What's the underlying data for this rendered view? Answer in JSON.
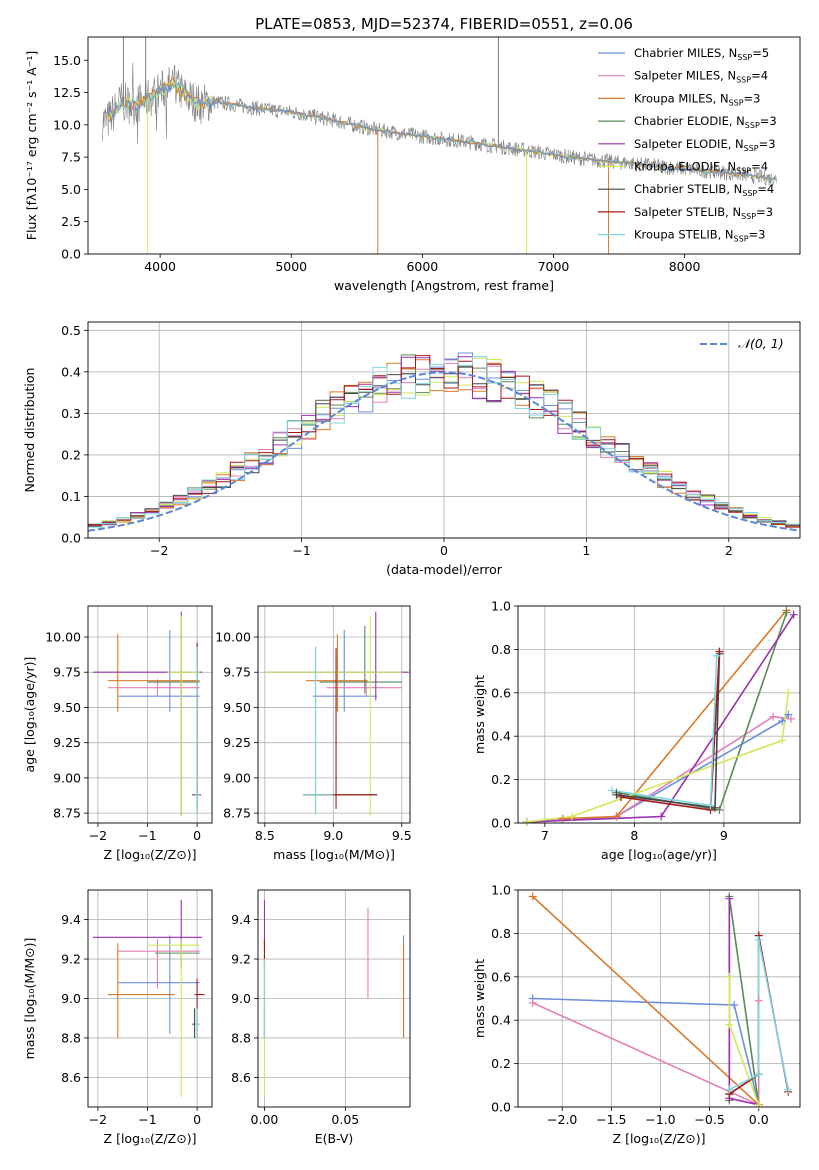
{
  "colors": {
    "Chabrier MILES": "#6b8fdb",
    "Salpeter MILES": "#e37fb8",
    "Kroupa MILES": "#d97a2b",
    "Chabrier ELODIE": "#5a8a5a",
    "Salpeter ELODIE": "#9a30b0",
    "Kroupa ELODIE": "#d2e85a",
    "Chabrier STELIB": "#444444",
    "Salpeter STELIB": "#a81818",
    "Kroupa STELIB": "#7fd6e2",
    "observed": "#808080"
  },
  "chart_data": [
    {
      "id": "spectrum",
      "type": "line",
      "title": "PLATE=0853, MJD=52374, FIBERID=0551, z=0.06",
      "xlabel": "wavelength [Angstrom, rest frame]",
      "ylabel": "Flux [fλ10⁻¹⁷ erg cm⁻² s⁻¹ A⁻¹]",
      "xlim": [
        3450,
        8880
      ],
      "ylim": [
        0,
        16.8
      ],
      "xticks": [
        "4000",
        "5000",
        "6000",
        "7000",
        "8000"
      ],
      "yticks": [
        "0.0",
        "2.5",
        "5.0",
        "7.5",
        "10.0",
        "12.5",
        "15.0"
      ],
      "legend_position": "top-right",
      "legend": [
        {
          "series": "Chabrier MILES",
          "base": "Chabrier MILES, N",
          "sub": "SSP",
          "tail": "=5"
        },
        {
          "series": "Salpeter MILES",
          "base": "Salpeter MILES, N",
          "sub": "SSP",
          "tail": "=4"
        },
        {
          "series": "Kroupa MILES",
          "base": "Kroupa MILES, N",
          "sub": "SSP",
          "tail": "=3"
        },
        {
          "series": "Chabrier ELODIE",
          "base": "Chabrier ELODIE, N",
          "sub": "SSP",
          "tail": "=3"
        },
        {
          "series": "Salpeter ELODIE",
          "base": "Salpeter ELODIE, N",
          "sub": "SSP",
          "tail": "=3"
        },
        {
          "series": "Kroupa ELODIE",
          "base": "Kroupa ELODIE, N",
          "sub": "SSP",
          "tail": "=4"
        },
        {
          "series": "Chabrier STELIB",
          "base": "Chabrier STELIB, N",
          "sub": "SSP",
          "tail": "=4"
        },
        {
          "series": "Salpeter STELIB",
          "base": "Salpeter STELIB, N",
          "sub": "SSP",
          "tail": "=3"
        },
        {
          "series": "Kroupa STELIB",
          "base": "Kroupa STELIB, N",
          "sub": "SSP",
          "tail": "=3"
        }
      ],
      "continuum": {
        "x": [
          3600,
          3700,
          3800,
          3900,
          4000,
          4100,
          4200,
          4300,
          4400,
          4600,
          4800,
          5000,
          5300,
          5600,
          6000,
          6400,
          6800,
          7200,
          7600,
          8000,
          8400,
          8700
        ],
        "y": [
          10.3,
          11.8,
          11.5,
          12.0,
          12.6,
          13.2,
          12.2,
          11.6,
          11.8,
          11.5,
          11.2,
          11.0,
          10.4,
          9.7,
          9.1,
          8.6,
          8.0,
          7.4,
          7.0,
          6.6,
          6.2,
          5.8
        ]
      },
      "spikes": [
        {
          "x": 3905,
          "y": 0,
          "series": "Kroupa ELODIE"
        },
        {
          "x": 5660,
          "y": 0,
          "series": "Kroupa MILES"
        },
        {
          "x": 6795,
          "y": 0,
          "series": "Kroupa ELODIE"
        },
        {
          "x": 7420,
          "y": 0,
          "series": "Kroupa MILES"
        },
        {
          "x": 6580,
          "y": 16.8,
          "series": "observed"
        },
        {
          "x": 3720,
          "y": 16.8,
          "series": "observed"
        },
        {
          "x": 3890,
          "y": 16.8,
          "series": "observed"
        }
      ]
    },
    {
      "id": "residuals",
      "type": "step",
      "xlabel": "(data-model)/error",
      "ylabel": "Normed distribution",
      "xlim": [
        -2.5,
        2.5
      ],
      "ylim": [
        0,
        0.52
      ],
      "xticks": [
        "−2",
        "−1",
        "0",
        "1",
        "2"
      ],
      "yticks": [
        "0.0",
        "0.1",
        "0.2",
        "0.3",
        "0.4",
        "0.5"
      ],
      "legend_position": "top-right",
      "reference": {
        "name": "𝒩(0, 1)",
        "style": "dashed",
        "color": "#5b87d6"
      },
      "bin_width": 0.1
    },
    {
      "id": "age-vs-Z",
      "type": "errorbar",
      "xlabel": "Z [log₁₀(Z/Z⊙)]",
      "ylabel": "age  [log₁₀(age/yr)]",
      "xlim": [
        -2.2,
        0.3
      ],
      "ylim": [
        8.68,
        10.22
      ],
      "xticks": [
        "−2",
        "−1",
        "0"
      ],
      "yticks": [
        "8.75",
        "9.00",
        "9.25",
        "9.50",
        "9.75",
        "10.00"
      ],
      "points": [
        {
          "series": "Chabrier MILES",
          "x": -0.55,
          "xe": [
            -1.6,
            0.05
          ],
          "y": 9.58,
          "ye": [
            9.47,
            10.05
          ]
        },
        {
          "series": "Salpeter MILES",
          "x": -0.8,
          "xe": [
            -1.8,
            0.05
          ],
          "y": 9.64,
          "ye": [
            9.58,
            9.7
          ]
        },
        {
          "series": "Kroupa MILES",
          "x": -1.6,
          "xe": [
            -1.8,
            0.05
          ],
          "y": 9.69,
          "ye": [
            9.47,
            10.02
          ]
        },
        {
          "series": "Chabrier ELODIE",
          "x": -0.32,
          "xe": [
            -1.0,
            0.05
          ],
          "y": 9.68,
          "ye": [
            9.6,
            9.77
          ]
        },
        {
          "series": "Salpeter ELODIE",
          "x": -0.32,
          "xe": [
            -2.1,
            0.1
          ],
          "y": 9.75,
          "ye": [
            8.73,
            10.18
          ]
        },
        {
          "series": "Kroupa ELODIE",
          "x": -0.32,
          "xe": [
            -0.6,
            0.05
          ],
          "y": 9.75,
          "ye": [
            8.73,
            10.15
          ]
        },
        {
          "series": "Chabrier STELIB",
          "x": 0.0,
          "xe": [
            -0.1,
            0.05
          ],
          "y": 8.88,
          "ye": [
            8.75,
            9.96
          ]
        },
        {
          "series": "Salpeter STELIB",
          "x": 0.0,
          "xe": [
            -0.05,
            0.08
          ],
          "y": 8.88,
          "ye": [
            8.8,
            9.95
          ]
        },
        {
          "series": "Kroupa STELIB",
          "x": 0.0,
          "xe": [
            -0.05,
            0.05
          ],
          "y": 8.88,
          "ye": [
            8.75,
            9.93
          ]
        }
      ]
    },
    {
      "id": "age-vs-mass",
      "type": "errorbar",
      "xlabel": "mass [log₁₀(M/M⊙)]",
      "ylabel": "",
      "xlim": [
        8.45,
        9.56
      ],
      "ylim": [
        8.68,
        10.22
      ],
      "xticks": [
        "8.5",
        "9.0",
        "9.5"
      ],
      "yticks": [
        "8.75",
        "9.00",
        "9.25",
        "9.50",
        "9.75",
        "10.00"
      ],
      "points": [
        {
          "series": "Chabrier MILES",
          "x": 9.08,
          "xe": [
            8.85,
            9.32
          ],
          "y": 9.58,
          "ye": [
            9.47,
            10.05
          ]
        },
        {
          "series": "Salpeter MILES",
          "x": 9.24,
          "xe": [
            8.95,
            9.5
          ],
          "y": 9.64,
          "ye": [
            9.58,
            9.7
          ]
        },
        {
          "series": "Kroupa MILES",
          "x": 9.03,
          "xe": [
            8.8,
            9.25
          ],
          "y": 9.69,
          "ye": [
            9.47,
            10.02
          ]
        },
        {
          "series": "Chabrier ELODIE",
          "x": 9.23,
          "xe": [
            8.9,
            9.5
          ],
          "y": 9.68,
          "ye": [
            9.6,
            10.08
          ]
        },
        {
          "series": "Salpeter ELODIE",
          "x": 9.31,
          "xe": [
            8.5,
            9.55
          ],
          "y": 9.75,
          "ye": [
            9.55,
            10.18
          ]
        },
        {
          "series": "Kroupa ELODIE",
          "x": 9.27,
          "xe": [
            8.5,
            9.5
          ],
          "y": 9.75,
          "ye": [
            8.73,
            10.15
          ]
        },
        {
          "series": "Chabrier STELIB",
          "x": 8.87,
          "xe": [
            8.78,
            9.32
          ],
          "y": 8.88,
          "ye": [
            8.75,
            9.93
          ]
        },
        {
          "series": "Salpeter STELIB",
          "x": 9.02,
          "xe": [
            8.8,
            9.32
          ],
          "y": 8.88,
          "ye": [
            8.78,
            9.92
          ]
        },
        {
          "series": "Kroupa STELIB",
          "x": 8.87,
          "xe": [
            8.78,
            9.0
          ],
          "y": 8.88,
          "ye": [
            8.75,
            9.93
          ]
        }
      ]
    },
    {
      "id": "weight-vs-age",
      "type": "line",
      "xlabel": "age  [log₁₀(age/yr)]",
      "ylabel": "mass weight",
      "xlim": [
        6.7,
        9.85
      ],
      "ylim": [
        0,
        1.0
      ],
      "xticks": [
        "7",
        "8",
        "9"
      ],
      "yticks": [
        "0.0",
        "0.2",
        "0.4",
        "0.6",
        "0.8",
        "1.0"
      ],
      "series": [
        {
          "name": "Chabrier MILES",
          "x": [
            6.8,
            7.8,
            9.65,
            9.72
          ],
          "y": [
            0.005,
            0.03,
            0.47,
            0.5
          ]
        },
        {
          "name": "Salpeter MILES",
          "x": [
            6.8,
            7.8,
            9.55,
            9.75
          ],
          "y": [
            0.005,
            0.03,
            0.49,
            0.48
          ]
        },
        {
          "name": "Kroupa MILES",
          "x": [
            7.2,
            7.8,
            9.7
          ],
          "y": [
            0.02,
            0.03,
            0.98
          ]
        },
        {
          "name": "Chabrier ELODIE",
          "x": [
            7.8,
            8.95,
            9.7
          ],
          "y": [
            0.14,
            0.06,
            0.97
          ]
        },
        {
          "name": "Salpeter ELODIE",
          "x": [
            6.8,
            8.3,
            9.78
          ],
          "y": [
            0.005,
            0.03,
            0.96
          ]
        },
        {
          "name": "Kroupa ELODIE",
          "x": [
            6.8,
            7.3,
            9.65,
            9.72
          ],
          "y": [
            0.005,
            0.03,
            0.38,
            0.6
          ]
        },
        {
          "name": "Chabrier STELIB",
          "x": [
            7.8,
            8.9,
            8.95
          ],
          "y": [
            0.13,
            0.07,
            0.78
          ]
        },
        {
          "name": "Salpeter STELIB",
          "x": [
            7.85,
            8.85,
            8.95
          ],
          "y": [
            0.12,
            0.06,
            0.79
          ]
        },
        {
          "name": "Kroupa STELIB",
          "x": [
            7.75,
            8.85,
            8.92
          ],
          "y": [
            0.15,
            0.08,
            0.77
          ]
        }
      ]
    },
    {
      "id": "mass-vs-Z",
      "type": "errorbar",
      "xlabel": "Z [log₁₀(Z/Z⊙)]",
      "ylabel": "mass [log₁₀(M/M⊙)]",
      "xlim": [
        -2.2,
        0.3
      ],
      "ylim": [
        8.45,
        9.55
      ],
      "xticks": [
        "−2",
        "−1",
        "0"
      ],
      "yticks": [
        "8.6",
        "8.8",
        "9.0",
        "9.2",
        "9.4"
      ],
      "points": [
        {
          "series": "Chabrier MILES",
          "x": -0.55,
          "xe": [
            -1.6,
            0.05
          ],
          "y": 9.08,
          "ye": [
            8.82,
            9.32
          ]
        },
        {
          "series": "Salpeter MILES",
          "x": -0.8,
          "xe": [
            -1.6,
            0.05
          ],
          "y": 9.24,
          "ye": [
            9.05,
            9.3
          ]
        },
        {
          "series": "Kroupa MILES",
          "x": -1.6,
          "xe": [
            -1.8,
            -0.45
          ],
          "y": 9.02,
          "ye": [
            8.8,
            9.28
          ]
        },
        {
          "series": "Chabrier ELODIE",
          "x": -0.32,
          "xe": [
            -0.85,
            0.05
          ],
          "y": 9.23,
          "ye": [
            9.15,
            9.3
          ]
        },
        {
          "series": "Salpeter ELODIE",
          "x": -0.32,
          "xe": [
            -2.1,
            0.1
          ],
          "y": 9.31,
          "ye": [
            9.25,
            9.5
          ]
        },
        {
          "series": "Kroupa ELODIE",
          "x": -0.32,
          "xe": [
            -1.0,
            0.05
          ],
          "y": 9.27,
          "ye": [
            8.5,
            9.3
          ]
        },
        {
          "series": "Chabrier STELIB",
          "x": -0.05,
          "xe": [
            -0.1,
            0.05
          ],
          "y": 8.87,
          "ye": [
            8.8,
            8.95
          ]
        },
        {
          "series": "Salpeter STELIB",
          "x": 0.0,
          "xe": [
            -0.05,
            0.15
          ],
          "y": 9.02,
          "ye": [
            8.8,
            9.1
          ]
        },
        {
          "series": "Kroupa STELIB",
          "x": 0.0,
          "xe": [
            -0.05,
            0.05
          ],
          "y": 8.87,
          "ye": [
            8.8,
            8.95
          ]
        }
      ]
    },
    {
      "id": "mass-vs-EBV",
      "type": "errorbar",
      "xlabel": "E(B-V)",
      "ylabel": "",
      "xlim": [
        -0.004,
        0.09
      ],
      "ylim": [
        8.45,
        9.55
      ],
      "xticks": [
        "0.00",
        "0.05"
      ],
      "yticks": [
        "8.6",
        "8.8",
        "9.0",
        "9.2",
        "9.4"
      ],
      "points": [
        {
          "series": "Chabrier MILES",
          "x": 0.086,
          "xe": [
            0.086,
            0.086
          ],
          "y": 9.08,
          "ye": [
            8.82,
            9.32
          ]
        },
        {
          "series": "Salpeter MILES",
          "x": 0.064,
          "xe": [
            0.064,
            0.064
          ],
          "y": 9.24,
          "ye": [
            9.0,
            9.46
          ]
        },
        {
          "series": "Kroupa MILES",
          "x": 0.086,
          "xe": [
            0.086,
            0.086
          ],
          "y": 9.02,
          "ye": [
            8.8,
            9.28
          ]
        },
        {
          "series": "Chabrier ELODIE",
          "x": 0.0,
          "xe": [
            0.0,
            0.0
          ],
          "y": 9.23,
          "ye": [
            9.15,
            9.3
          ]
        },
        {
          "series": "Salpeter ELODIE",
          "x": 0.0,
          "xe": [
            0.0,
            0.0
          ],
          "y": 9.31,
          "ye": [
            9.25,
            9.5
          ]
        },
        {
          "series": "Kroupa ELODIE",
          "x": 0.0,
          "xe": [
            0.0,
            0.0
          ],
          "y": 9.27,
          "ye": [
            8.5,
            9.3
          ]
        },
        {
          "series": "Chabrier STELIB",
          "x": 0.0,
          "xe": [
            0.0,
            0.0
          ],
          "y": 8.87,
          "ye": [
            8.8,
            8.95
          ]
        },
        {
          "series": "Salpeter STELIB",
          "x": 0.0,
          "xe": [
            0.0,
            0.0
          ],
          "y": 9.02,
          "ye": [
            8.8,
            9.3
          ]
        },
        {
          "series": "Kroupa STELIB",
          "x": 0.0,
          "xe": [
            0.0,
            0.0
          ],
          "y": 8.87,
          "ye": [
            8.8,
            9.2
          ]
        }
      ]
    },
    {
      "id": "weight-vs-Z",
      "type": "line",
      "xlabel": "Z [log₁₀(Z/Z⊙)]",
      "ylabel": "mass weight",
      "xlim": [
        -2.45,
        0.42
      ],
      "ylim": [
        0,
        1.0
      ],
      "xticks": [
        "−2.0",
        "−1.5",
        "−1.0",
        "−0.5",
        "0.0"
      ],
      "yticks": [
        "0.0",
        "0.2",
        "0.4",
        "0.6",
        "0.8",
        "1.0"
      ],
      "series": [
        {
          "name": "Chabrier MILES",
          "x": [
            -2.3,
            -0.25,
            0.0
          ],
          "y": [
            0.5,
            0.47,
            0.01
          ]
        },
        {
          "name": "Salpeter MILES",
          "x": [
            -2.3,
            0.0,
            0.0
          ],
          "y": [
            0.48,
            0.01,
            0.49
          ]
        },
        {
          "name": "Kroupa MILES",
          "x": [
            -2.3,
            0.0,
            0.0
          ],
          "y": [
            0.97,
            0.01,
            0.01
          ]
        },
        {
          "name": "Chabrier ELODIE",
          "x": [
            -0.3,
            -0.3,
            0.0
          ],
          "y": [
            0.03,
            0.97,
            0.01
          ]
        },
        {
          "name": "Salpeter ELODIE",
          "x": [
            -0.3,
            -0.3,
            0.0
          ],
          "y": [
            0.96,
            0.04,
            0.01
          ]
        },
        {
          "name": "Kroupa ELODIE",
          "x": [
            -0.3,
            -0.3,
            0.0
          ],
          "y": [
            0.6,
            0.38,
            0.01
          ]
        },
        {
          "name": "Chabrier STELIB",
          "x": [
            -0.3,
            0.0,
            0.0
          ],
          "y": [
            0.06,
            0.15,
            0.79
          ]
        },
        {
          "name": "Salpeter STELIB",
          "x": [
            -0.3,
            0.0,
            0.0,
            0.3
          ],
          "y": [
            0.06,
            0.15,
            0.79,
            0.07
          ]
        },
        {
          "name": "Kroupa STELIB",
          "x": [
            -0.3,
            0.0,
            0.0,
            0.3
          ],
          "y": [
            0.08,
            0.15,
            0.77,
            0.08
          ]
        }
      ]
    }
  ]
}
